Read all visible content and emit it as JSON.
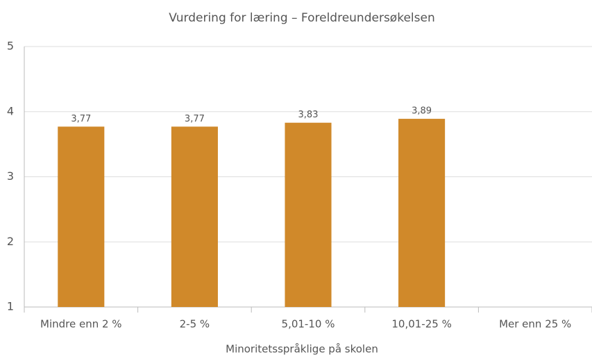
{
  "chart_data": {
    "type": "bar",
    "title": "Vurdering for læring – Foreldreundersøkelsen",
    "x_label": "Minoritetsspråklige på skolen",
    "categories": [
      "Mindre enn 2 %",
      "2-5 %",
      "5,01-10 %",
      "10,01-25 %",
      "Mer enn 25 %"
    ],
    "values": [
      3.77,
      3.77,
      3.83,
      3.89,
      null
    ],
    "value_labels": [
      "3,77",
      "3,77",
      "3,83",
      "3,89",
      null
    ],
    "color": "#d0892a",
    "ylim": [
      1,
      5
    ],
    "yticks": [
      1,
      2,
      3,
      4,
      5
    ],
    "grid": true
  }
}
